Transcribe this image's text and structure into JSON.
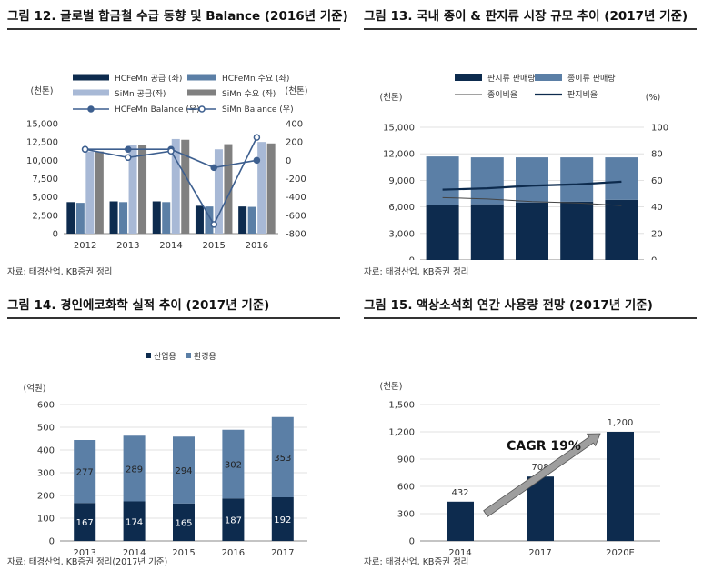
{
  "panels": [
    {
      "title": "그림 12. 글로벌 합금철 수급 동향 및 Balance (2016년 기준)",
      "source": "자료: 태경산업, KB증권 정리"
    },
    {
      "title": "그림 13. 국내 종이 & 판지류 시장 규모 추이 (2017년 기준)",
      "source": "자료: 태경산업, KB증권 정리"
    },
    {
      "title": "그림 14. 경인에코화학 실적 추이 (2017년 기준)",
      "source": "자료: 태경산업, KB증권 정리(2017년 기준)"
    },
    {
      "title": "그림 15. 액상소석회 연간 사용량 전망 (2017년 기준)",
      "source": "자료: 태경산업, KB증권 정리"
    }
  ],
  "chart_data": [
    {
      "type": "bar",
      "ylabel": "(천톤)",
      "y2label": "(천톤)",
      "categories": [
        "2012",
        "2013",
        "2014",
        "2015",
        "2016"
      ],
      "ylim": [
        0,
        15000
      ],
      "yticks": [
        0,
        2500,
        5000,
        7500,
        10000,
        12500,
        15000
      ],
      "ytick_labels": [
        "0",
        "2,500",
        "5,000",
        "7,500",
        "10,000",
        "12,500",
        "15,000"
      ],
      "y2lim": [
        -800,
        400
      ],
      "y2ticks": [
        -800,
        -600,
        -400,
        -200,
        0,
        200,
        400
      ],
      "y2tick_labels": [
        "-800",
        "-600",
        "-400",
        "-200",
        "0",
        "200",
        "400"
      ],
      "series": [
        {
          "name": "HCFeMn 공급 (좌)",
          "kind": "bar",
          "axis": "left",
          "color": "#0d2b4e",
          "values": [
            4300,
            4400,
            4400,
            3800,
            3700
          ]
        },
        {
          "name": "HCFeMn 수요 (좌)",
          "kind": "bar",
          "axis": "left",
          "color": "#5b7fa6",
          "values": [
            4200,
            4300,
            4300,
            3700,
            3650
          ]
        },
        {
          "name": "SiMn 공급(좌)",
          "kind": "bar",
          "axis": "left",
          "color": "#a8b9d6",
          "values": [
            11200,
            12100,
            12900,
            11500,
            12500
          ]
        },
        {
          "name": "SiMn 수요 (좌)",
          "kind": "bar",
          "axis": "left",
          "color": "#808080",
          "values": [
            11200,
            12050,
            12800,
            12200,
            12300
          ]
        },
        {
          "name": "HCFeMn Balance (우)",
          "kind": "line",
          "axis": "right",
          "color": "#3d5f8f",
          "marker": "filled",
          "values": [
            120,
            120,
            120,
            -80,
            0
          ]
        },
        {
          "name": "SiMn Balance (우)",
          "kind": "line",
          "axis": "right",
          "color": "#3d5f8f",
          "marker": "hollow",
          "values": [
            120,
            30,
            100,
            -700,
            250
          ]
        }
      ],
      "grid": false,
      "legend": "top"
    },
    {
      "type": "bar",
      "ylabel": "(천톤)",
      "y2label": "(%)",
      "categories": [
        "2013",
        "2014",
        "2015",
        "2016",
        "2017"
      ],
      "ylim": [
        0,
        15000
      ],
      "yticks": [
        0,
        3000,
        6000,
        9000,
        12000,
        15000
      ],
      "ytick_labels": [
        "0",
        "3,000",
        "6,000",
        "9,000",
        "12,000",
        "15,000"
      ],
      "y2lim": [
        0,
        100
      ],
      "y2ticks": [
        0,
        20,
        40,
        60,
        80,
        100
      ],
      "y2tick_labels": [
        "0",
        "20",
        "40",
        "60",
        "80",
        "100"
      ],
      "series": [
        {
          "name": "판지류 판매량",
          "kind": "bar",
          "axis": "left",
          "stack": "s",
          "color": "#0d2b4e",
          "values": [
            6200,
            6300,
            6500,
            6600,
            6800
          ]
        },
        {
          "name": "종이류 판매량",
          "kind": "bar",
          "axis": "left",
          "stack": "s",
          "color": "#5b7fa6",
          "values": [
            5500,
            5300,
            5100,
            5000,
            4800
          ]
        },
        {
          "name": "종이비율",
          "kind": "line",
          "axis": "right",
          "color": "#444444",
          "width": 1,
          "values": [
            47,
            46,
            44,
            43,
            41
          ]
        },
        {
          "name": "판지비율",
          "kind": "line",
          "axis": "right",
          "color": "#0d2b4e",
          "width": 2.2,
          "values": [
            53,
            54,
            56,
            57,
            59
          ]
        }
      ],
      "grid": true,
      "legend": "top"
    },
    {
      "type": "bar",
      "ylabel": "(억원)",
      "categories": [
        "2013",
        "2014",
        "2015",
        "2016",
        "2017"
      ],
      "ylim": [
        0,
        600
      ],
      "yticks": [
        0,
        100,
        200,
        300,
        400,
        500,
        600
      ],
      "ytick_labels": [
        "0",
        "100",
        "200",
        "300",
        "400",
        "500",
        "600"
      ],
      "series": [
        {
          "name": "산업용",
          "kind": "bar",
          "stack": "s",
          "color": "#0d2b4e",
          "labelColor": "#ffffff",
          "values": [
            167,
            174,
            165,
            187,
            192
          ]
        },
        {
          "name": "환경용",
          "kind": "bar",
          "stack": "s",
          "color": "#5b7fa6",
          "labelColor": "#222222",
          "values": [
            277,
            289,
            294,
            302,
            353
          ]
        }
      ],
      "data_labels": true,
      "grid": true,
      "legend": "top"
    },
    {
      "type": "bar",
      "ylabel": "(천톤)",
      "categories": [
        "2014",
        "2017",
        "2020E"
      ],
      "ylim": [
        0,
        1500
      ],
      "yticks": [
        0,
        300,
        600,
        900,
        1200,
        1500
      ],
      "ytick_labels": [
        "0",
        "300",
        "600",
        "900",
        "1,200",
        "1,500"
      ],
      "series": [
        {
          "name": "",
          "kind": "bar",
          "color": "#0d2b4e",
          "values": [
            432,
            708,
            1200
          ],
          "value_labels": [
            "432",
            "708",
            "1,200"
          ]
        }
      ],
      "annotation": "CAGR 19%",
      "grid": true,
      "legend": "none"
    }
  ]
}
